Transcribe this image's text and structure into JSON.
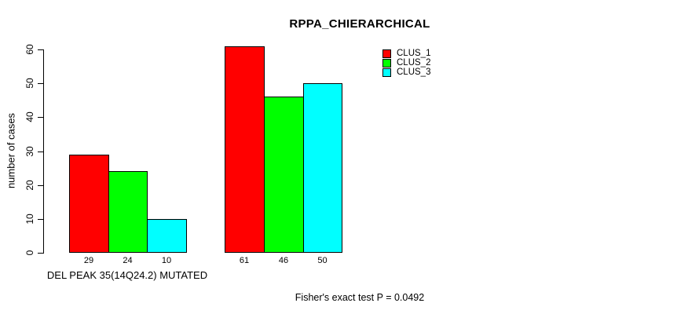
{
  "title": "RPPA_CHIERARCHICAL",
  "footer": "Fisher's exact test P = 0.0492",
  "chart_data": {
    "type": "bar",
    "title": "RPPA_CHIERARCHICAL",
    "ylabel": "number of cases",
    "xlabel": "DEL PEAK 35(14Q24.2) MUTATED",
    "ylim": [
      0,
      60
    ],
    "yticks": [
      0,
      10,
      20,
      30,
      40,
      50,
      60
    ],
    "grid": false,
    "legend_position": "top-right",
    "categories": [
      "DEL PEAK 35(14Q24.2) MUTATED",
      ""
    ],
    "series": [
      {
        "name": "CLUS_1",
        "color": "#ff0000",
        "values": [
          29,
          61
        ]
      },
      {
        "name": "CLUS_2",
        "color": "#00ff00",
        "values": [
          24,
          46
        ]
      },
      {
        "name": "CLUS_3",
        "color": "#00ffff",
        "values": [
          10,
          50
        ]
      }
    ],
    "bar_value_labels": [
      [
        29,
        24,
        10
      ],
      [
        61,
        46,
        50
      ]
    ],
    "annotation": "Fisher's exact test P = 0.0492"
  }
}
